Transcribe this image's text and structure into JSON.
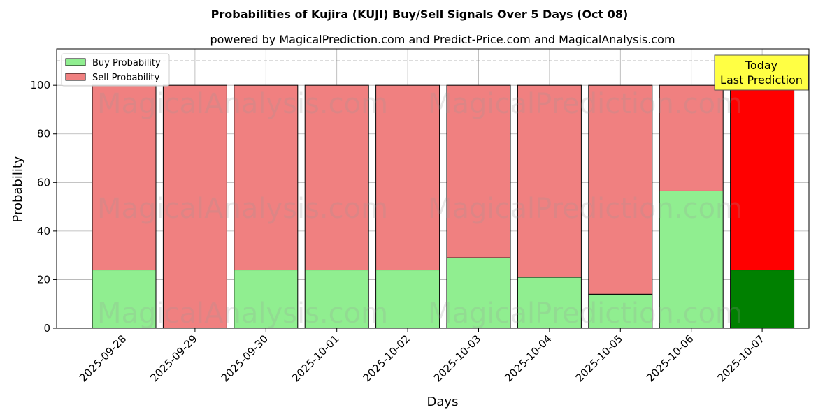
{
  "chart_data": {
    "type": "bar",
    "stacked": true,
    "title": "Probabilities of Kujira (KUJI) Buy/Sell Signals Over 5 Days (Oct 08)",
    "subtitle": "powered by MagicalPrediction.com and Predict-Price.com and MagicalAnalysis.com",
    "xlabel": "Days",
    "ylabel": "Probability",
    "ylim": [
      0,
      115
    ],
    "yticks": [
      0,
      20,
      40,
      60,
      80,
      100
    ],
    "grid": true,
    "legend_position": "top-left",
    "reference_line": 110,
    "categories": [
      "2025-09-28",
      "2025-09-29",
      "2025-09-30",
      "2025-10-01",
      "2025-10-02",
      "2025-10-03",
      "2025-10-04",
      "2025-10-05",
      "2025-10-06",
      "2025-10-07"
    ],
    "series": [
      {
        "name": "Buy Probability",
        "values": [
          24,
          0,
          24,
          24,
          24,
          29,
          21,
          14,
          56.5,
          24
        ],
        "color": "#90ee90",
        "highlight_color": "#008000"
      },
      {
        "name": "Sell Probability",
        "values": [
          76,
          100,
          76,
          76,
          76,
          71,
          79,
          86,
          43.5,
          76
        ],
        "color": "#f08080",
        "highlight_color": "#ff0000"
      }
    ],
    "highlight_index": 9,
    "annotation": {
      "lines": [
        "Today",
        "Last Prediction"
      ],
      "color": "#ffff44"
    },
    "watermarks": [
      "MagicalAnalysis.com",
      "MagicalPrediction.com"
    ]
  }
}
